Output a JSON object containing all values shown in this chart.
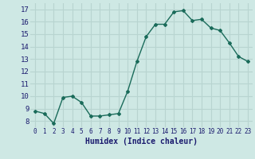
{
  "x": [
    0,
    1,
    2,
    3,
    4,
    5,
    6,
    7,
    8,
    9,
    10,
    11,
    12,
    13,
    14,
    15,
    16,
    17,
    18,
    19,
    20,
    21,
    22,
    23
  ],
  "y": [
    8.8,
    8.6,
    7.8,
    9.9,
    10.0,
    9.5,
    8.4,
    8.4,
    8.5,
    8.6,
    10.4,
    12.8,
    14.8,
    15.8,
    15.8,
    16.8,
    16.9,
    16.1,
    16.2,
    15.5,
    15.3,
    14.3,
    13.2,
    12.8
  ],
  "xlabel": "Humidex (Indice chaleur)",
  "bg_color": "#cee8e4",
  "grid_color": "#b8d4d0",
  "line_color": "#1a6b5a",
  "marker_color": "#1a6b5a",
  "ylim": [
    7.5,
    17.5
  ],
  "xlim": [
    -0.5,
    23.5
  ],
  "yticks": [
    8,
    9,
    10,
    11,
    12,
    13,
    14,
    15,
    16,
    17
  ],
  "xticks": [
    0,
    1,
    2,
    3,
    4,
    5,
    6,
    7,
    8,
    9,
    10,
    11,
    12,
    13,
    14,
    15,
    16,
    17,
    18,
    19,
    20,
    21,
    22,
    23
  ],
  "tick_color": "#1a1a6e",
  "xlabel_color": "#1a1a6e",
  "xlabel_fontsize": 7,
  "tick_fontsize": 5.5,
  "ytick_fontsize": 6.5
}
